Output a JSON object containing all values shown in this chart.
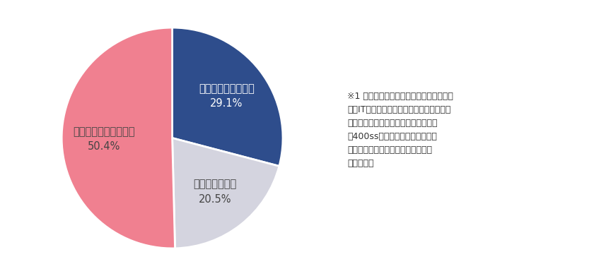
{
  "labels": [
    "教育を実施している",
    "良くわからない",
    "教育を実施していない"
  ],
  "values": [
    29.1,
    20.5,
    50.4
  ],
  "colors": [
    "#2e4d8c",
    "#d4d4df",
    "#f08090"
  ],
  "label_texts": [
    "教育を実施している\n29.1%",
    "良くわからない\n20.5%",
    "教育を実施していない\n50.4%"
  ],
  "annotation_lines": [
    "※1 上図は、今回調査した「メーカー」、",
    "　「IT・通信系」、「流通小売」、「サー",
    "　ビス業」、「医療」、「公務」の各",
    "　400ssの合計の割合のため、全",
    "　業種の平均ではないことに留意さ",
    "　れたい。"
  ],
  "background_color": "#ffffff",
  "startangle": 90,
  "fontsize_label": 10.5,
  "fontsize_annotation": 9.0,
  "label_colors": [
    "#ffffff",
    "#444444",
    "#444444"
  ],
  "label_radii": [
    0.62,
    0.62,
    0.62
  ]
}
